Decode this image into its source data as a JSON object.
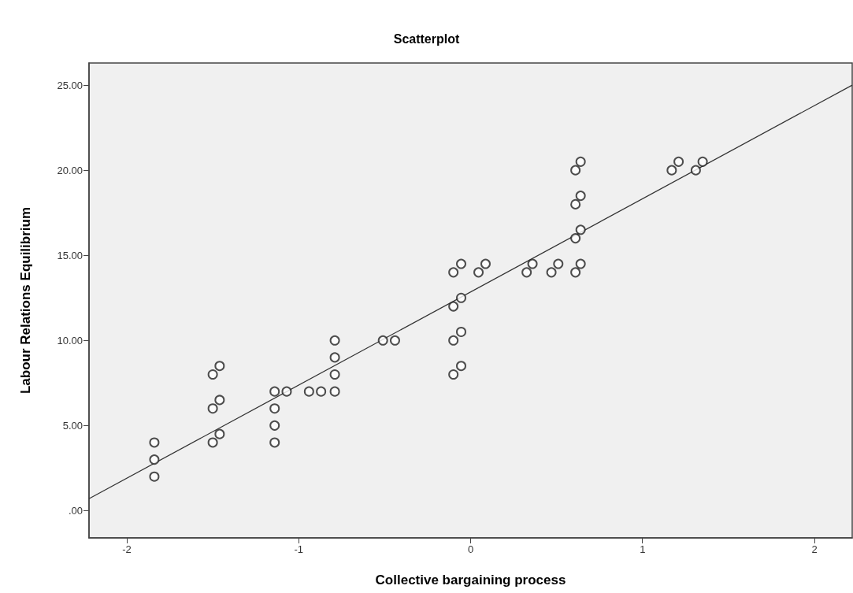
{
  "chart_data": {
    "type": "scatter",
    "title": "Scatterplot",
    "xlabel": "Collective bargaining process",
    "ylabel": "Labour Relations Equilibrium",
    "xlim": [
      -2.22,
      2.22
    ],
    "xticks": [
      -2,
      -1,
      0,
      1,
      2
    ],
    "ylim": [
      -1.6,
      26.3
    ],
    "yticks": [
      {
        "value": 0,
        "label": ".00"
      },
      {
        "value": 5,
        "label": "5.00"
      },
      {
        "value": 10,
        "label": "10.00"
      },
      {
        "value": 15,
        "label": "15.00"
      },
      {
        "value": 20,
        "label": "20.00"
      },
      {
        "value": 25,
        "label": "25.00"
      }
    ],
    "grid": false,
    "marker": "circle",
    "series": [
      {
        "color": "#222222",
        "x": [
          -1.84,
          -1.84,
          -1.84,
          -1.5,
          -1.46,
          -1.5,
          -1.46,
          -1.5,
          -1.46,
          -1.14,
          -1.14,
          -1.14,
          -1.14,
          -1.07,
          -0.94,
          -0.87,
          -0.79,
          -0.79,
          -0.79,
          -0.79,
          -0.51,
          -0.44,
          -0.1,
          -0.055,
          -0.1,
          -0.055,
          -0.1,
          -0.055,
          -0.1,
          -0.055,
          0.046,
          0.087,
          0.326,
          0.36,
          0.47,
          0.51,
          0.61,
          0.64,
          0.61,
          0.64,
          0.61,
          0.64,
          0.61,
          0.64,
          1.17,
          1.21,
          1.31,
          1.35
        ],
        "values": [
          4,
          3,
          2,
          8,
          8.5,
          6,
          6.5,
          4,
          4.5,
          7,
          6,
          5,
          4,
          7,
          7,
          7,
          7,
          8,
          9,
          10,
          10,
          10,
          10,
          10.5,
          12,
          12.5,
          14,
          14.5,
          8,
          8.5,
          14,
          14.5,
          14,
          14.5,
          14,
          14.5,
          20,
          20.5,
          18,
          18.5,
          16,
          16.5,
          14,
          14.5,
          20,
          20.5,
          20,
          20.5
        ]
      },
      {
        "type": "line",
        "color": "#333333",
        "marker": "none",
        "line_style": "solid",
        "x": [
          -2.22,
          2.22
        ],
        "values": [
          0.7,
          25.0
        ]
      }
    ]
  }
}
